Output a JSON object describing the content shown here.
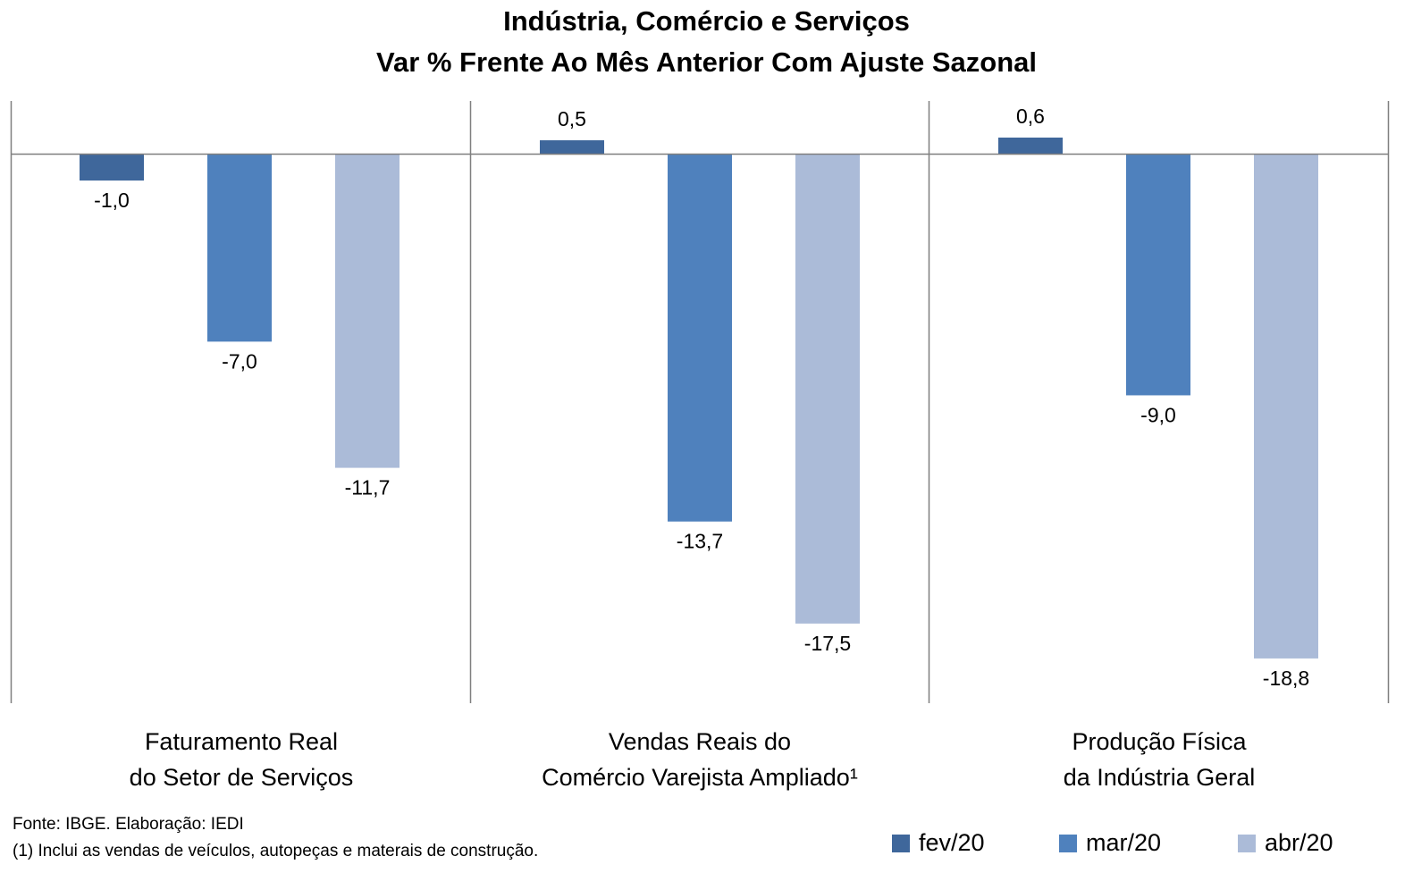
{
  "chart_data": {
    "type": "bar",
    "title": "Indústria, Comércio e Serviços",
    "subtitle": "Var % Frente Ao Mês Anterior Com Ajuste Sazonal",
    "categories": [
      [
        "Faturamento Real",
        "do Setor de Serviços"
      ],
      [
        "Vendas Reais do",
        "Comércio Varejista Ampliado¹"
      ],
      [
        "Produção Física",
        "da Indústria Geral"
      ]
    ],
    "series": [
      {
        "name": "fev/20",
        "color": "#3f679b",
        "values": [
          -1.0,
          0.5,
          0.6
        ],
        "labels": [
          "-1,0",
          "0,5",
          "0,6"
        ]
      },
      {
        "name": "mar/20",
        "color": "#4f81bd",
        "values": [
          -7.0,
          -13.7,
          -9.0
        ],
        "labels": [
          "-7,0",
          "-13,7",
          "-9,0"
        ]
      },
      {
        "name": "abr/20",
        "color": "#abbbd8",
        "values": [
          -11.7,
          -17.5,
          -18.8
        ],
        "labels": [
          "-11,7",
          "-17,5",
          "-18,8"
        ]
      }
    ],
    "ylim": [
      -20.5,
      2
    ],
    "legend_position": "bottom-right",
    "grid": false
  },
  "notes": {
    "source": "Fonte: IBGE. Elaboração: IEDI",
    "footnote": "(1) Inclui as vendas de veículos, autopeças e materais de construção."
  }
}
